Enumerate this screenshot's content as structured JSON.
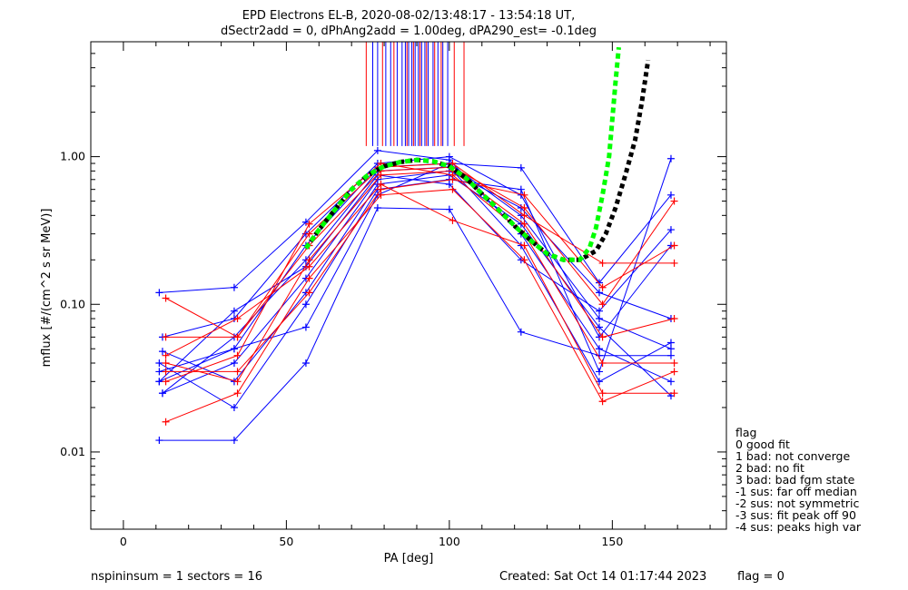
{
  "chart_data": {
    "type": "line",
    "title_line1": "EPD Electrons EL-B, 2020-08-02/13:48:17 - 13:54:18 UT,",
    "title_line2": "dSectr2add = 0, dPhAng2add = 1.00deg, dPA290_est=  -0.1deg",
    "xlabel": "PA [deg]",
    "ylabel": "mflux [#/(cm^2 s sr MeV)]",
    "xlim": [
      -10,
      185
    ],
    "ylim": [
      0.003,
      6.0
    ],
    "yscale": "log",
    "xticks": [
      0,
      50,
      100,
      150
    ],
    "xtick_labels": [
      "0",
      "50",
      "100",
      "150"
    ],
    "yticks": [
      0.01,
      0.1,
      1.0
    ],
    "ytick_labels": [
      "0.01",
      "0.10",
      "1.00"
    ],
    "colors": {
      "blue": "#0000ff",
      "red": "#ff0000",
      "green": "#00ff00",
      "black": "#000000"
    },
    "series": [
      {
        "color": "blue",
        "values": [
          [
            11,
            0.03
          ],
          [
            34,
            0.05
          ],
          [
            56,
            0.25
          ],
          [
            78,
            0.85
          ],
          [
            100,
            0.9
          ],
          [
            122,
            0.4
          ],
          [
            146,
            0.08
          ],
          [
            168,
            0.05
          ]
        ]
      },
      {
        "color": "blue",
        "values": [
          [
            11,
            0.12
          ],
          [
            34,
            0.13
          ],
          [
            56,
            0.36
          ],
          [
            78,
            1.1
          ],
          [
            100,
            0.95
          ],
          [
            122,
            0.3
          ],
          [
            146,
            0.05
          ],
          [
            168,
            0.03
          ]
        ]
      },
      {
        "color": "blue",
        "values": [
          [
            12,
            0.025
          ],
          [
            34,
            0.04
          ],
          [
            56,
            0.15
          ],
          [
            78,
            0.7
          ],
          [
            100,
            0.8
          ],
          [
            122,
            0.45
          ],
          [
            146,
            0.12
          ],
          [
            168,
            0.08
          ]
        ]
      },
      {
        "color": "blue",
        "values": [
          [
            11,
            0.012
          ],
          [
            34,
            0.012
          ],
          [
            56,
            0.04
          ],
          [
            78,
            0.45
          ],
          [
            100,
            0.44
          ],
          [
            122,
            0.065
          ],
          [
            146,
            0.045
          ],
          [
            168,
            0.045
          ]
        ]
      },
      {
        "color": "blue",
        "values": [
          [
            12,
            0.06
          ],
          [
            34,
            0.08
          ],
          [
            56,
            0.3
          ],
          [
            78,
            0.9
          ],
          [
            100,
            1.0
          ],
          [
            122,
            0.55
          ],
          [
            146,
            0.06
          ],
          [
            168,
            0.25
          ]
        ]
      },
      {
        "color": "blue",
        "values": [
          [
            11,
            0.04
          ],
          [
            34,
            0.02
          ],
          [
            56,
            0.1
          ],
          [
            78,
            0.6
          ],
          [
            100,
            0.7
          ],
          [
            122,
            0.6
          ],
          [
            146,
            0.035
          ],
          [
            168,
            0.97
          ]
        ]
      },
      {
        "color": "blue",
        "values": [
          [
            12,
            0.025
          ],
          [
            34,
            0.06
          ],
          [
            56,
            0.2
          ],
          [
            78,
            0.8
          ],
          [
            100,
            0.85
          ],
          [
            122,
            0.25
          ],
          [
            146,
            0.03
          ],
          [
            168,
            0.055
          ]
        ]
      },
      {
        "color": "blue",
        "values": [
          [
            11,
            0.035
          ],
          [
            34,
            0.05
          ],
          [
            56,
            0.07
          ],
          [
            78,
            0.55
          ],
          [
            100,
            0.9
          ],
          [
            122,
            0.84
          ],
          [
            146,
            0.14
          ],
          [
            168,
            0.55
          ]
        ]
      },
      {
        "color": "blue",
        "values": [
          [
            11,
            0.03
          ],
          [
            34,
            0.09
          ],
          [
            56,
            0.18
          ],
          [
            78,
            0.75
          ],
          [
            100,
            0.65
          ],
          [
            122,
            0.2
          ],
          [
            146,
            0.09
          ],
          [
            168,
            0.32
          ]
        ]
      },
      {
        "color": "blue",
        "values": [
          [
            12,
            0.048
          ],
          [
            34,
            0.03
          ],
          [
            56,
            0.12
          ],
          [
            78,
            0.65
          ],
          [
            100,
            0.75
          ],
          [
            122,
            0.35
          ],
          [
            146,
            0.07
          ],
          [
            168,
            0.024
          ]
        ]
      },
      {
        "color": "red",
        "values": [
          [
            13,
            0.04
          ],
          [
            35,
            0.03
          ],
          [
            57,
            0.2
          ],
          [
            79,
            0.75
          ],
          [
            101,
            0.8
          ],
          [
            123,
            0.35
          ],
          [
            147,
            0.06
          ],
          [
            169,
            0.08
          ]
        ]
      },
      {
        "color": "red",
        "values": [
          [
            13,
            0.016
          ],
          [
            35,
            0.025
          ],
          [
            57,
            0.15
          ],
          [
            79,
            0.55
          ],
          [
            101,
            0.6
          ],
          [
            123,
            0.2
          ],
          [
            147,
            0.022
          ],
          [
            169,
            0.035
          ]
        ]
      },
      {
        "color": "red",
        "values": [
          [
            13,
            0.11
          ],
          [
            35,
            0.06
          ],
          [
            57,
            0.3
          ],
          [
            79,
            0.85
          ],
          [
            101,
            0.9
          ],
          [
            123,
            0.4
          ],
          [
            147,
            0.19
          ],
          [
            169,
            0.19
          ]
        ]
      },
      {
        "color": "red",
        "values": [
          [
            13,
            0.06
          ],
          [
            35,
            0.06
          ],
          [
            57,
            0.25
          ],
          [
            79,
            0.8
          ],
          [
            101,
            0.85
          ],
          [
            123,
            0.45
          ],
          [
            147,
            0.1
          ],
          [
            169,
            0.5
          ]
        ]
      },
      {
        "color": "red",
        "values": [
          [
            13,
            0.03
          ],
          [
            35,
            0.045
          ],
          [
            57,
            0.35
          ],
          [
            79,
            0.9
          ],
          [
            101,
            0.75
          ],
          [
            123,
            0.3
          ],
          [
            147,
            0.04
          ],
          [
            169,
            0.04
          ]
        ]
      },
      {
        "color": "red",
        "values": [
          [
            13,
            0.045
          ],
          [
            35,
            0.08
          ],
          [
            57,
            0.18
          ],
          [
            79,
            0.65
          ],
          [
            101,
            0.37
          ],
          [
            123,
            0.25
          ],
          [
            147,
            0.025
          ],
          [
            169,
            0.025
          ]
        ]
      },
      {
        "color": "red",
        "values": [
          [
            13,
            0.035
          ],
          [
            35,
            0.035
          ],
          [
            57,
            0.12
          ],
          [
            79,
            0.6
          ],
          [
            101,
            0.7
          ],
          [
            123,
            0.55
          ],
          [
            147,
            0.13
          ],
          [
            169,
            0.25
          ]
        ]
      }
    ],
    "bin_lines": {
      "ymin": 1.18,
      "ymax": 6.0,
      "blue_x": [
        76.5,
        78.0,
        80.5,
        82.0,
        84.0,
        85.5,
        86.5,
        87.5,
        88.5,
        89.5,
        90.5,
        91.5,
        92.5,
        93.5,
        95.0,
        96.5,
        98.0,
        99.5
      ],
      "red_x": [
        74.5,
        79.5,
        83.0,
        87.0,
        89.0,
        91.0,
        93.0,
        95.5,
        97.5,
        101.5,
        104.5
      ]
    },
    "fit_green": [
      [
        56,
        0.24
      ],
      [
        60,
        0.32
      ],
      [
        65,
        0.44
      ],
      [
        70,
        0.6
      ],
      [
        75,
        0.75
      ],
      [
        80,
        0.86
      ],
      [
        85,
        0.92
      ],
      [
        90,
        0.95
      ],
      [
        95,
        0.93
      ],
      [
        100,
        0.86
      ],
      [
        105,
        0.72
      ],
      [
        110,
        0.56
      ],
      [
        115,
        0.44
      ],
      [
        120,
        0.34
      ],
      [
        125,
        0.27
      ],
      [
        130,
        0.22
      ],
      [
        135,
        0.2
      ],
      [
        140,
        0.2
      ],
      [
        143,
        0.24
      ],
      [
        145,
        0.33
      ],
      [
        147,
        0.55
      ],
      [
        149,
        1.0
      ],
      [
        150,
        1.8
      ],
      [
        151,
        3.2
      ],
      [
        152,
        5.5
      ]
    ],
    "fit_black": [
      [
        56,
        0.24
      ],
      [
        60,
        0.32
      ],
      [
        65,
        0.44
      ],
      [
        70,
        0.6
      ],
      [
        75,
        0.75
      ],
      [
        80,
        0.86
      ],
      [
        85,
        0.92
      ],
      [
        90,
        0.95
      ],
      [
        95,
        0.93
      ],
      [
        100,
        0.86
      ],
      [
        105,
        0.72
      ],
      [
        110,
        0.56
      ],
      [
        115,
        0.44
      ],
      [
        120,
        0.34
      ],
      [
        125,
        0.27
      ],
      [
        130,
        0.22
      ],
      [
        135,
        0.2
      ],
      [
        140,
        0.2
      ],
      [
        145,
        0.23
      ],
      [
        148,
        0.3
      ],
      [
        151,
        0.45
      ],
      [
        154,
        0.75
      ],
      [
        157,
        1.3
      ],
      [
        159,
        2.3
      ],
      [
        161,
        4.5
      ]
    ],
    "legend_title": "flag",
    "legend": [
      " 0 good fit",
      " 1 bad: not converge",
      " 2 bad: no fit",
      " 3 bad: bad fgm state",
      "-1 sus: far off median",
      "-2 sus: not symmetric",
      "-3 sus: fit peak off 90",
      "-4 sus: peaks high var"
    ]
  },
  "footer": {
    "left": "nspininsum =  1  sectors = 16",
    "created": "Created: Sat Oct 14 01:17:44 2023",
    "flag": "flag = 0"
  }
}
